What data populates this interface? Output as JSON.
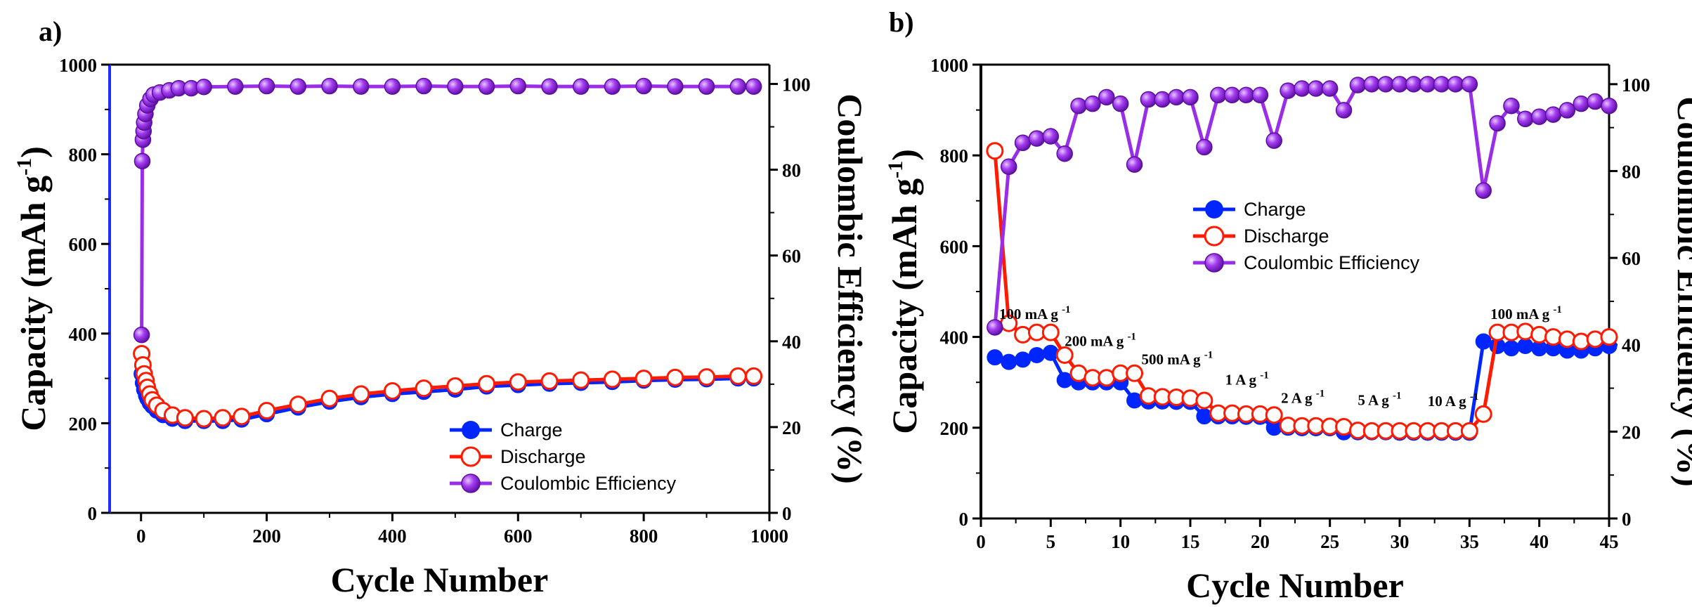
{
  "chart_data": [
    {
      "panel": "a)",
      "type": "scatter",
      "xlabel": "Cycle Number",
      "ylabel": "Capacity (mAh g",
      "ylabel_sup": "-1",
      "ylabel_tail": ")",
      "y2label": "Coulombic Efficiency (%)",
      "xlim": [
        -50,
        1000
      ],
      "ylim": [
        0,
        1000
      ],
      "y2lim": [
        0,
        104.5
      ],
      "xticks": [
        0,
        200,
        400,
        600,
        800,
        1000
      ],
      "yticks": [
        0,
        200,
        400,
        600,
        800,
        1000
      ],
      "y2ticks": [
        0,
        20,
        40,
        60,
        80,
        100
      ],
      "legend_position": "bottom-right",
      "series": [
        {
          "name": "Charge",
          "axis": "left",
          "color": "#0026ff",
          "marker": "filled-circle",
          "x": [
            1,
            3,
            5,
            8,
            10,
            14,
            18,
            25,
            35,
            50,
            70,
            100,
            130,
            160,
            200,
            250,
            300,
            350,
            400,
            450,
            500,
            550,
            600,
            650,
            700,
            750,
            800,
            850,
            900,
            950,
            975
          ],
          "y": [
            310,
            290,
            275,
            262,
            255,
            245,
            238,
            228,
            218,
            210,
            205,
            205,
            205,
            208,
            220,
            235,
            248,
            258,
            265,
            270,
            275,
            282,
            285,
            288,
            290,
            292,
            295,
            297,
            298,
            300,
            300
          ]
        },
        {
          "name": "Discharge",
          "axis": "left",
          "color": "#ff1a00",
          "marker": "open-circle",
          "x": [
            1,
            3,
            5,
            8,
            10,
            14,
            18,
            25,
            35,
            50,
            70,
            100,
            130,
            160,
            200,
            250,
            300,
            350,
            400,
            450,
            500,
            550,
            600,
            650,
            700,
            750,
            800,
            850,
            900,
            950,
            975
          ],
          "y": [
            355,
            330,
            310,
            295,
            280,
            265,
            252,
            240,
            228,
            218,
            212,
            210,
            212,
            215,
            228,
            242,
            255,
            265,
            272,
            278,
            283,
            288,
            292,
            294,
            296,
            298,
            300,
            302,
            303,
            305,
            305
          ]
        },
        {
          "name": "Coulombic Efficiency",
          "axis": "right",
          "color": "#9a2ee8",
          "marker": "filled-sphere",
          "x": [
            1,
            2,
            3,
            4,
            5,
            7,
            10,
            15,
            20,
            30,
            45,
            60,
            80,
            100,
            150,
            200,
            250,
            300,
            350,
            400,
            450,
            500,
            550,
            600,
            650,
            700,
            750,
            800,
            850,
            900,
            950,
            975
          ],
          "y": [
            41.5,
            82,
            87,
            89,
            91,
            93,
            95,
            96.5,
            97.5,
            98,
            98.5,
            99,
            99,
            99.3,
            99.4,
            99.5,
            99.4,
            99.5,
            99.4,
            99.4,
            99.5,
            99.4,
            99.4,
            99.5,
            99.4,
            99.4,
            99.4,
            99.5,
            99.4,
            99.4,
            99.4,
            99.4
          ]
        }
      ]
    },
    {
      "panel": "b)",
      "type": "scatter",
      "xlabel": "Cycle Number",
      "ylabel": "Capacity (mAh g",
      "ylabel_sup": "-1",
      "ylabel_tail": ")",
      "y2label": "Coulombic Efficiency (%)",
      "xlim": [
        0,
        45
      ],
      "ylim": [
        0,
        1000
      ],
      "y2lim": [
        0,
        104.5
      ],
      "xticks": [
        0,
        5,
        10,
        15,
        20,
        25,
        30,
        35,
        40,
        45
      ],
      "yticks": [
        0,
        200,
        400,
        600,
        800,
        1000
      ],
      "y2ticks": [
        0,
        20,
        40,
        60,
        80,
        100
      ],
      "legend_position": "center",
      "series": [
        {
          "name": "Charge",
          "axis": "left",
          "color": "#0026ff",
          "marker": "filled-circle",
          "x": [
            1,
            2,
            3,
            4,
            5,
            6,
            7,
            8,
            9,
            10,
            11,
            12,
            13,
            14,
            15,
            16,
            17,
            18,
            19,
            20,
            21,
            22,
            23,
            24,
            25,
            26,
            27,
            28,
            29,
            30,
            31,
            32,
            33,
            34,
            35,
            36,
            37,
            38,
            39,
            40,
            41,
            42,
            43,
            44,
            45
          ],
          "y": [
            355,
            345,
            350,
            360,
            365,
            305,
            300,
            300,
            300,
            300,
            260,
            258,
            258,
            257,
            257,
            225,
            225,
            225,
            224,
            224,
            200,
            200,
            199,
            199,
            199,
            190,
            190,
            190,
            190,
            189,
            189,
            189,
            189,
            189,
            189,
            390,
            380,
            375,
            380,
            375,
            375,
            370,
            370,
            375,
            380
          ]
        },
        {
          "name": "Discharge",
          "axis": "left",
          "color": "#ff1a00",
          "marker": "open-circle",
          "x": [
            1,
            2,
            3,
            4,
            5,
            6,
            7,
            8,
            9,
            10,
            11,
            12,
            13,
            14,
            15,
            16,
            17,
            18,
            19,
            20,
            21,
            22,
            23,
            24,
            25,
            26,
            27,
            28,
            29,
            30,
            31,
            32,
            33,
            34,
            35,
            36,
            37,
            38,
            39,
            40,
            41,
            42,
            43,
            44,
            45
          ],
          "y": [
            810,
            430,
            405,
            410,
            410,
            360,
            320,
            310,
            310,
            320,
            320,
            270,
            268,
            267,
            265,
            260,
            232,
            232,
            230,
            230,
            228,
            205,
            204,
            204,
            203,
            202,
            194,
            193,
            193,
            193,
            193,
            193,
            193,
            193,
            193,
            230,
            410,
            410,
            412,
            405,
            400,
            395,
            390,
            395,
            400
          ]
        },
        {
          "name": "Coulombic Efficiency",
          "axis": "right",
          "color": "#9a2ee8",
          "marker": "filled-sphere",
          "x": [
            1,
            2,
            3,
            4,
            5,
            6,
            7,
            8,
            9,
            10,
            11,
            12,
            13,
            14,
            15,
            16,
            17,
            18,
            19,
            20,
            21,
            22,
            23,
            24,
            25,
            26,
            27,
            28,
            29,
            30,
            31,
            32,
            33,
            34,
            35,
            36,
            37,
            38,
            39,
            40,
            41,
            42,
            43,
            44,
            45
          ],
          "y": [
            44,
            81,
            86.5,
            87.5,
            88,
            84,
            95,
            95.5,
            97,
            95.5,
            81.5,
            96.5,
            96.5,
            97,
            97,
            85.5,
            97.5,
            97.5,
            97.5,
            97.5,
            87,
            98.5,
            99,
            99,
            99,
            94,
            99.8,
            100,
            100,
            100,
            100,
            100,
            100,
            100,
            100,
            75.5,
            91,
            95,
            92,
            92.5,
            93,
            94,
            95.5,
            96,
            95
          ]
        }
      ],
      "annotations": [
        {
          "text": "100 mA g",
          "sup": "-1"
        },
        {
          "text": "200 mA g",
          "sup": "-1"
        },
        {
          "text": "500 mA g",
          "sup": "-1"
        },
        {
          "text": "1 A g",
          "sup": "-1"
        },
        {
          "text": "2 A g",
          "sup": "-1"
        },
        {
          "text": "5 A g",
          "sup": "-1"
        },
        {
          "text": "10 A g",
          "sup": "-1"
        },
        {
          "text": "100 mA g",
          "sup": "-1"
        }
      ]
    }
  ]
}
